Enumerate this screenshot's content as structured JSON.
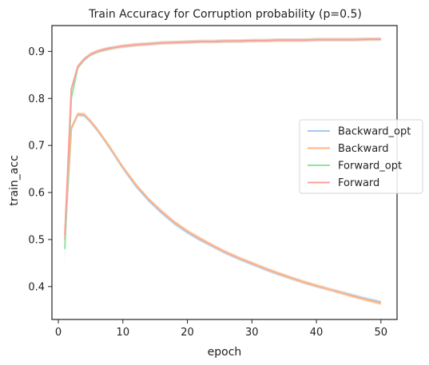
{
  "chart_data": {
    "type": "line",
    "title": "Train Accuracy for Corruption probability (p=0.5)",
    "xlabel": "epoch",
    "ylabel": "train_acc",
    "xlim": [
      -1,
      52.5
    ],
    "ylim": [
      0.33,
      0.955
    ],
    "xticks": [
      0,
      10,
      20,
      30,
      40,
      50
    ],
    "yticks": [
      0.4,
      0.5,
      0.6,
      0.7,
      0.8,
      0.9
    ],
    "grid": false,
    "legend_position": "center-right",
    "series": [
      {
        "name": "Backward_opt",
        "color": "#a1c9f4",
        "x": [
          1,
          2,
          3,
          4,
          5,
          6,
          7,
          8,
          9,
          10,
          12,
          14,
          16,
          18,
          20,
          22,
          24,
          26,
          28,
          30,
          32,
          34,
          36,
          38,
          40,
          42,
          44,
          46,
          48,
          50
        ],
        "y": [
          0.5,
          0.735,
          0.765,
          0.764,
          0.75,
          0.733,
          0.714,
          0.694,
          0.673,
          0.652,
          0.614,
          0.583,
          0.557,
          0.534,
          0.515,
          0.499,
          0.485,
          0.471,
          0.459,
          0.448,
          0.437,
          0.427,
          0.418,
          0.409,
          0.401,
          0.394,
          0.387,
          0.38,
          0.373,
          0.367
        ]
      },
      {
        "name": "Backward",
        "color": "#ffb482",
        "x": [
          1,
          2,
          3,
          4,
          5,
          6,
          7,
          8,
          9,
          10,
          12,
          14,
          16,
          18,
          20,
          22,
          24,
          26,
          28,
          30,
          32,
          34,
          36,
          38,
          40,
          42,
          44,
          46,
          48,
          50
        ],
        "y": [
          0.5,
          0.737,
          0.767,
          0.766,
          0.752,
          0.735,
          0.716,
          0.696,
          0.675,
          0.654,
          0.617,
          0.586,
          0.56,
          0.537,
          0.518,
          0.502,
          0.487,
          0.473,
          0.461,
          0.45,
          0.439,
          0.429,
          0.419,
          0.41,
          0.402,
          0.394,
          0.386,
          0.378,
          0.371,
          0.364
        ]
      },
      {
        "name": "Forward_opt",
        "color": "#8de5a1",
        "x": [
          1,
          2,
          3,
          4,
          5,
          6,
          7,
          8,
          9,
          10,
          12,
          14,
          16,
          18,
          20,
          22,
          24,
          26,
          28,
          30,
          32,
          34,
          36,
          38,
          40,
          42,
          44,
          46,
          48,
          50
        ],
        "y": [
          0.48,
          0.8,
          0.865,
          0.882,
          0.893,
          0.899,
          0.903,
          0.906,
          0.909,
          0.911,
          0.914,
          0.916,
          0.918,
          0.919,
          0.92,
          0.921,
          0.921,
          0.922,
          0.922,
          0.923,
          0.923,
          0.924,
          0.924,
          0.924,
          0.925,
          0.925,
          0.925,
          0.925,
          0.926,
          0.926
        ]
      },
      {
        "name": "Forward",
        "color": "#ff9f9b",
        "x": [
          1,
          2,
          3,
          4,
          5,
          6,
          7,
          8,
          9,
          10,
          12,
          14,
          16,
          18,
          20,
          22,
          24,
          26,
          28,
          30,
          32,
          34,
          36,
          38,
          40,
          42,
          44,
          46,
          48,
          50
        ],
        "y": [
          0.51,
          0.82,
          0.868,
          0.884,
          0.894,
          0.9,
          0.904,
          0.907,
          0.909,
          0.911,
          0.914,
          0.916,
          0.918,
          0.919,
          0.92,
          0.921,
          0.921,
          0.922,
          0.922,
          0.923,
          0.923,
          0.924,
          0.924,
          0.924,
          0.925,
          0.925,
          0.925,
          0.925,
          0.926,
          0.926
        ]
      }
    ]
  }
}
